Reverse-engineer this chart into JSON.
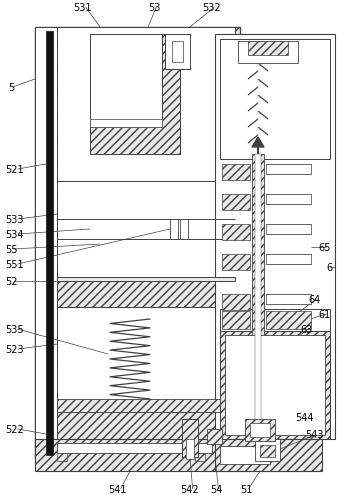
{
  "figsize": [
    3.52,
    5.02
  ],
  "dpi": 100,
  "lc": "#404040",
  "hatch_fc": "#e8e8e8"
}
